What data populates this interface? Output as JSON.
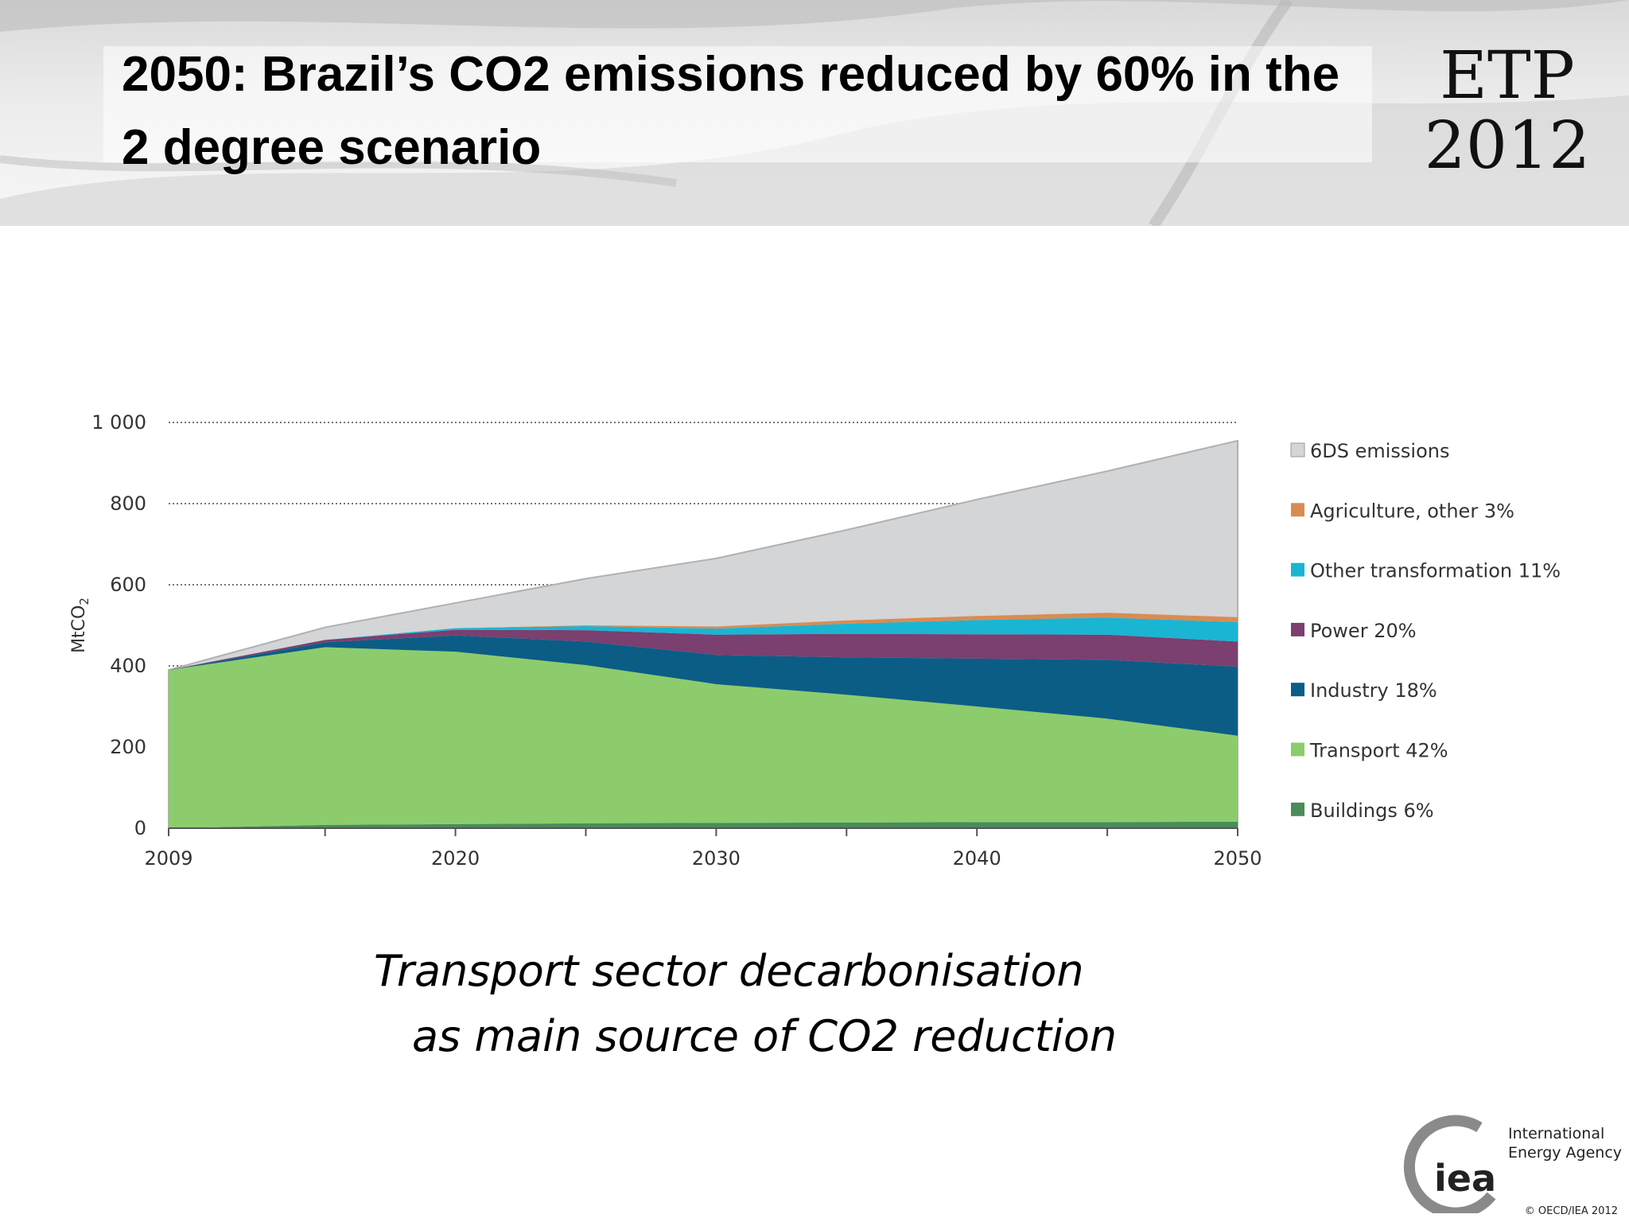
{
  "slide": {
    "title": "2050: Brazil’s CO2 emissions reduced by 60% in the 2 degree scenario",
    "badge_line1": "ETP",
    "badge_line2": "2012",
    "caption_line1": "Transport sector decarbonisation",
    "caption_line2": "as main source of CO2 reduction",
    "logo_text_line1": "International",
    "logo_text_line2": "Energy Agency",
    "logo_wordmark": "iea",
    "copyright": "© OECD/IEA 2012"
  },
  "chart_data": {
    "type": "area",
    "stacked": true,
    "ylabel": "MtCO2",
    "xlabel": "",
    "ylim": [
      0,
      1000
    ],
    "yticks": [
      0,
      200,
      400,
      600,
      800,
      1000
    ],
    "ytick_labels": [
      "0",
      "200",
      "400",
      "600",
      "800",
      "1 000"
    ],
    "xlim": [
      2009,
      2050
    ],
    "xtick_labels": [
      "2009",
      "2020",
      "2030",
      "2040",
      "2050"
    ],
    "x": [
      2009,
      2015,
      2020,
      2025,
      2030,
      2035,
      2040,
      2045,
      2050
    ],
    "grid": "horizontal dotted",
    "legend_position": "right",
    "baseline_series": {
      "name": "6DS emissions",
      "color": "#d4d5d7",
      "values": [
        390,
        495,
        555,
        615,
        665,
        735,
        810,
        880,
        955
      ]
    },
    "series": [
      {
        "name": "Buildings 6%",
        "color": "#4a8c5a",
        "values": [
          0,
          8,
          10,
          12,
          13,
          14,
          15,
          15,
          16
        ]
      },
      {
        "name": "Transport 42%",
        "color": "#8ccc6c",
        "values": [
          390,
          438,
          425,
          390,
          342,
          315,
          285,
          255,
          212
        ]
      },
      {
        "name": "Industry 18%",
        "color": "#0b5d86",
        "values": [
          0,
          12,
          40,
          58,
          72,
          92,
          118,
          145,
          170
        ]
      },
      {
        "name": "Power 20%",
        "color": "#7b3f70",
        "values": [
          0,
          6,
          14,
          28,
          50,
          58,
          60,
          62,
          62
        ]
      },
      {
        "name": "Other transformation 11%",
        "color": "#1ab5d3",
        "values": [
          0,
          0,
          4,
          10,
          15,
          25,
          35,
          42,
          48
        ]
      },
      {
        "name": "Agriculture, other 3%",
        "color": "#d98c52",
        "values": [
          0,
          0,
          0,
          2,
          5,
          8,
          10,
          12,
          12
        ]
      }
    ]
  }
}
